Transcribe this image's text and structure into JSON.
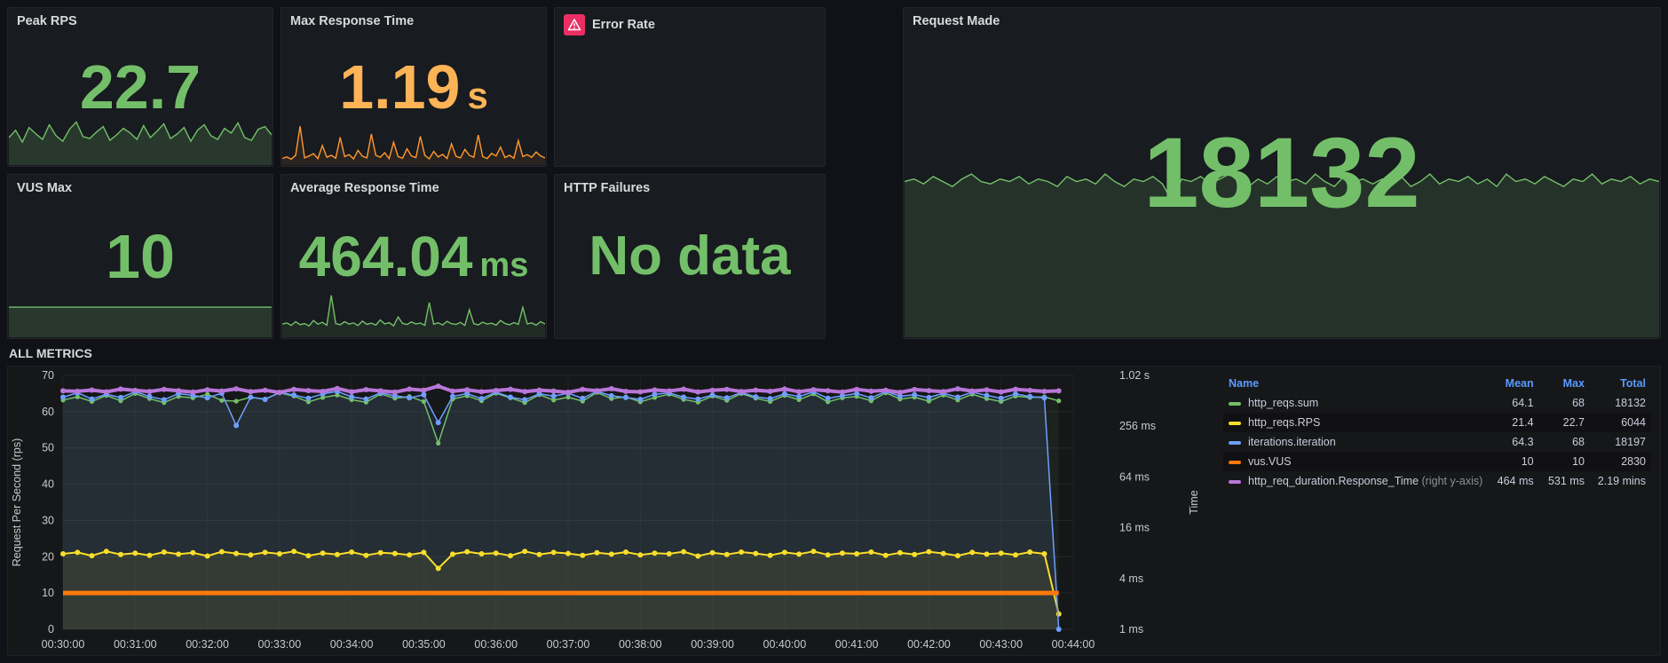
{
  "panels": {
    "peak_rps": {
      "title": "Peak RPS",
      "value": "22.7",
      "color": "#73bf69"
    },
    "max_response_time": {
      "title": "Max Response Time",
      "value": "1.19",
      "unit": "s",
      "color": "#ffb357"
    },
    "error_rate": {
      "title": "Error Rate",
      "alert_color": "#eb2f64"
    },
    "request_made": {
      "title": "Request Made",
      "value": "18132",
      "color": "#73bf69"
    },
    "vus_max": {
      "title": "VUS Max",
      "value": "10",
      "color": "#73bf69"
    },
    "avg_response_time": {
      "title": "Average Response Time",
      "value": "464.04",
      "unit": "ms",
      "color": "#73bf69"
    },
    "http_failures": {
      "title": "HTTP Failures",
      "value": "No data",
      "color": "#73bf69"
    }
  },
  "section": {
    "title": "ALL METRICS"
  },
  "legend": {
    "columns": [
      "Name",
      "Mean",
      "Max",
      "Total"
    ],
    "rows": [
      {
        "name": "http_reqs.sum",
        "color": "#73bf69",
        "mean": "64.1",
        "max": "68",
        "total": "18132"
      },
      {
        "name": "http_reqs.RPS",
        "color": "#fade2a",
        "mean": "21.4",
        "max": "22.7",
        "total": "6044"
      },
      {
        "name": "iterations.iteration",
        "color": "#6e9fff",
        "mean": "64.3",
        "max": "68",
        "total": "18197"
      },
      {
        "name": "vus.VUS",
        "color": "#ff780a",
        "mean": "10",
        "max": "10",
        "total": "2830"
      },
      {
        "name": "http_req_duration.Response_Time",
        "suffix": "(right y-axis)",
        "color": "#b877d9",
        "mean": "464 ms",
        "max": "531 ms",
        "total": "2.19 mins"
      }
    ]
  },
  "chart_data": [
    {
      "id": "main",
      "type": "line",
      "title": "ALL METRICS",
      "ylabel": "Request Per Second (rps)",
      "y2label": "Time",
      "ylim": [
        0,
        70
      ],
      "yticks": [
        0,
        10,
        20,
        30,
        40,
        50,
        60,
        70
      ],
      "y2ticks": [
        "1 ms",
        "4 ms",
        "16 ms",
        "64 ms",
        "256 ms",
        "1.02 s"
      ],
      "y2_render_range": [
        1,
        700
      ],
      "xticks": [
        "00:30:00",
        "00:31:00",
        "00:32:00",
        "00:33:00",
        "00:34:00",
        "00:35:00",
        "00:36:00",
        "00:37:00",
        "00:38:00",
        "00:39:00",
        "00:40:00",
        "00:41:00",
        "00:42:00",
        "00:43:00",
        "00:44:00"
      ],
      "x_range": [
        0,
        14
      ],
      "x_step_min": 0.2,
      "grid": true,
      "legend_position": "right",
      "series": [
        {
          "name": "http_reqs.sum",
          "color": "#73bf69",
          "axis": "left",
          "width": 1.5,
          "dot_r": 2.6,
          "fill_opacity": 0.07,
          "values": [
            63.2,
            64.1,
            62.8,
            64.5,
            63.0,
            65.0,
            63.6,
            62.5,
            64.2,
            63.8,
            64.8,
            63.1,
            62.9,
            64.0,
            63.5,
            65.2,
            64.3,
            62.7,
            63.9,
            64.6,
            63.3,
            62.6,
            64.9,
            63.7,
            64.2,
            62.8,
            51.3,
            63.5,
            64.4,
            63.0,
            65.1,
            63.8,
            62.5,
            64.7,
            63.2,
            64.0,
            62.9,
            65.3,
            63.6,
            64.1,
            62.7,
            63.9,
            64.8,
            63.4,
            62.6,
            64.3,
            63.1,
            65.0,
            63.7,
            62.8,
            64.5,
            63.3,
            64.9,
            62.7,
            63.8,
            64.2,
            63.0,
            65.2,
            63.5,
            64.0,
            62.9,
            64.6,
            63.2,
            64.8,
            63.6,
            62.8,
            64.3,
            63.9,
            64.1,
            63.0
          ]
        },
        {
          "name": "http_reqs.RPS",
          "color": "#fade2a",
          "axis": "left",
          "width": 2,
          "dot_r": 3,
          "fill_opacity": 0.08,
          "values": [
            20.8,
            21.2,
            20.3,
            21.5,
            20.6,
            21.0,
            20.4,
            21.3,
            20.7,
            21.1,
            20.2,
            21.4,
            20.9,
            20.5,
            21.2,
            20.8,
            21.5,
            20.3,
            21.0,
            20.6,
            21.3,
            20.4,
            21.1,
            20.9,
            20.5,
            21.2,
            16.8,
            20.7,
            21.4,
            20.8,
            21.0,
            20.3,
            21.5,
            20.6,
            21.2,
            20.9,
            20.4,
            21.1,
            20.7,
            21.3,
            20.5,
            21.0,
            20.8,
            21.4,
            20.2,
            21.1,
            20.6,
            21.3,
            20.9,
            20.4,
            21.2,
            20.7,
            21.5,
            20.5,
            21.0,
            20.8,
            21.3,
            20.4,
            21.1,
            20.6,
            21.4,
            20.9,
            20.3,
            21.2,
            20.7,
            21.0,
            20.5,
            21.3,
            20.8,
            4.2
          ]
        },
        {
          "name": "iterations.iteration",
          "color": "#6e9fff",
          "axis": "left",
          "width": 1.5,
          "dot_r": 3,
          "fill_opacity": 0.1,
          "values": [
            64.0,
            65.2,
            63.5,
            64.8,
            63.9,
            65.5,
            64.2,
            63.3,
            65.0,
            64.5,
            63.8,
            65.1,
            56.2,
            64.0,
            63.4,
            65.3,
            64.6,
            63.7,
            64.9,
            65.6,
            64.1,
            63.5,
            65.2,
            64.4,
            63.8,
            64.7,
            57.0,
            64.2,
            65.0,
            63.6,
            65.4,
            64.0,
            63.3,
            64.9,
            64.3,
            65.1,
            63.7,
            65.6,
            64.4,
            63.9,
            63.4,
            64.8,
            65.2,
            64.0,
            63.5,
            64.6,
            63.8,
            65.3,
            64.1,
            63.6,
            64.9,
            64.2,
            65.5,
            63.7,
            64.4,
            65.0,
            63.8,
            65.6,
            64.3,
            64.7,
            63.9,
            65.1,
            64.0,
            65.4,
            64.5,
            63.7,
            64.9,
            64.2,
            63.8,
            0
          ]
        },
        {
          "name": "vus.VUS",
          "color": "#ff780a",
          "axis": "left",
          "width": 5,
          "dot_r": 0,
          "fill_opacity": 0,
          "values": [
            10,
            10,
            10,
            10,
            10,
            10,
            10,
            10,
            10,
            10,
            10,
            10,
            10,
            10,
            10,
            10,
            10,
            10,
            10,
            10,
            10,
            10,
            10,
            10,
            10,
            10,
            10,
            10,
            10,
            10,
            10,
            10,
            10,
            10,
            10,
            10,
            10,
            10,
            10,
            10,
            10,
            10,
            10,
            10,
            10,
            10,
            10,
            10,
            10,
            10,
            10,
            10,
            10,
            10,
            10,
            10,
            10,
            10,
            10,
            10,
            10,
            10,
            10,
            10,
            10,
            10,
            10,
            10,
            10,
            10
          ]
        },
        {
          "name": "http_req_duration.Response_Time",
          "color": "#b877d9",
          "axis": "right",
          "width": 4,
          "dot_r": 3,
          "fill_opacity": 0,
          "values": [
            470,
            465,
            480,
            458,
            492,
            475,
            462,
            488,
            471,
            455,
            483,
            468,
            495,
            460,
            477,
            452,
            489,
            473,
            464,
            500,
            458,
            485,
            470,
            455,
            492,
            478,
            531,
            466,
            482,
            459,
            474,
            490,
            461,
            479,
            468,
            453,
            487,
            472,
            496,
            463,
            458,
            481,
            469,
            491,
            457,
            476,
            488,
            462,
            479,
            465,
            493,
            459,
            484,
            471,
            456,
            489,
            467,
            478,
            452,
            486,
            473,
            460,
            495,
            468,
            482,
            457,
            490,
            475,
            463,
            470
          ]
        }
      ]
    },
    {
      "id": "spark_peak_rps",
      "type": "area",
      "color": "#73bf69",
      "fill_opacity": 0.18,
      "ymin": 18,
      "ymax": 24,
      "values": [
        21.0,
        21.8,
        20.5,
        22.1,
        21.4,
        20.8,
        22.4,
        21.2,
        20.6,
        21.9,
        22.7,
        21.1,
        20.9,
        21.6,
        22.2,
        20.7,
        21.3,
        22.0,
        21.5,
        20.8,
        22.3,
        21.0,
        21.7,
        22.5,
        20.9,
        21.4,
        22.1,
        20.6,
        21.8,
        22.4,
        21.2,
        20.8,
        22.0,
        21.5,
        22.6,
        21.0,
        20.7,
        21.9,
        22.2,
        21.3
      ]
    },
    {
      "id": "spark_max_rt",
      "type": "area",
      "color": "#ff9830",
      "fill_opacity": 0.08,
      "ymin": 0,
      "ymax": 1.25,
      "values": [
        0.2,
        0.25,
        0.18,
        0.3,
        1.19,
        0.22,
        0.28,
        0.35,
        0.2,
        0.6,
        0.24,
        0.3,
        0.21,
        0.85,
        0.26,
        0.32,
        0.19,
        0.45,
        0.27,
        0.22,
        0.95,
        0.3,
        0.24,
        0.38,
        0.2,
        0.7,
        0.26,
        0.21,
        0.5,
        0.28,
        0.23,
        0.88,
        0.3,
        0.19,
        0.42,
        0.25,
        0.33,
        0.2,
        0.65,
        0.27,
        0.22,
        0.48,
        0.3,
        0.24,
        0.92,
        0.26,
        0.2,
        0.36,
        0.28,
        0.55,
        0.23,
        0.3,
        0.21,
        0.75,
        0.26,
        0.32,
        0.24,
        0.4,
        0.28,
        0.22
      ]
    },
    {
      "id": "spark_request_made",
      "type": "area",
      "color": "#73bf69",
      "fill_opacity": 0.15,
      "ymin": 0,
      "ymax": 70,
      "values": [
        63,
        64,
        62,
        65,
        63,
        61,
        64,
        66,
        63,
        62,
        64,
        63,
        65,
        62,
        64,
        63,
        61,
        65,
        63,
        64,
        62,
        66,
        63,
        61,
        64,
        63,
        65,
        62,
        55,
        64,
        63,
        65,
        62,
        64,
        66,
        63,
        61,
        64,
        62,
        65,
        63,
        64,
        62,
        66,
        63,
        61,
        65,
        63,
        64,
        62,
        64,
        63,
        65,
        61,
        63,
        66,
        62,
        64,
        63,
        65,
        62,
        64,
        61,
        66,
        63,
        64,
        62,
        65,
        63,
        61,
        64,
        63,
        66,
        62,
        64,
        63,
        65,
        62,
        64,
        63
      ]
    },
    {
      "id": "spark_vus",
      "type": "area",
      "color": "#73bf69",
      "fill_opacity": 0.18,
      "ymin": 0,
      "ymax": 10.6,
      "values": [
        10,
        10,
        10,
        10,
        10,
        10,
        10,
        10,
        10,
        10,
        10,
        10,
        10,
        10,
        10,
        10,
        10,
        10,
        10,
        10,
        10,
        10,
        10,
        10,
        10,
        10,
        10,
        10,
        10,
        10
      ]
    },
    {
      "id": "spark_avg_rt",
      "type": "area",
      "color": "#73bf69",
      "fill_opacity": 0.1,
      "ymin": 350,
      "ymax": 780,
      "values": [
        460,
        470,
        450,
        480,
        455,
        465,
        445,
        490,
        460,
        475,
        450,
        700,
        465,
        455,
        480,
        460,
        470,
        448,
        485,
        458,
        468,
        452,
        495,
        462,
        472,
        446,
        520,
        466,
        456,
        478,
        461,
        469,
        450,
        640,
        459,
        471,
        453,
        483,
        463,
        457,
        474,
        449,
        580,
        464,
        454,
        476,
        460,
        468,
        451,
        490,
        465,
        455,
        472,
        458,
        600,
        462,
        470,
        452,
        480,
        461
      ]
    }
  ]
}
